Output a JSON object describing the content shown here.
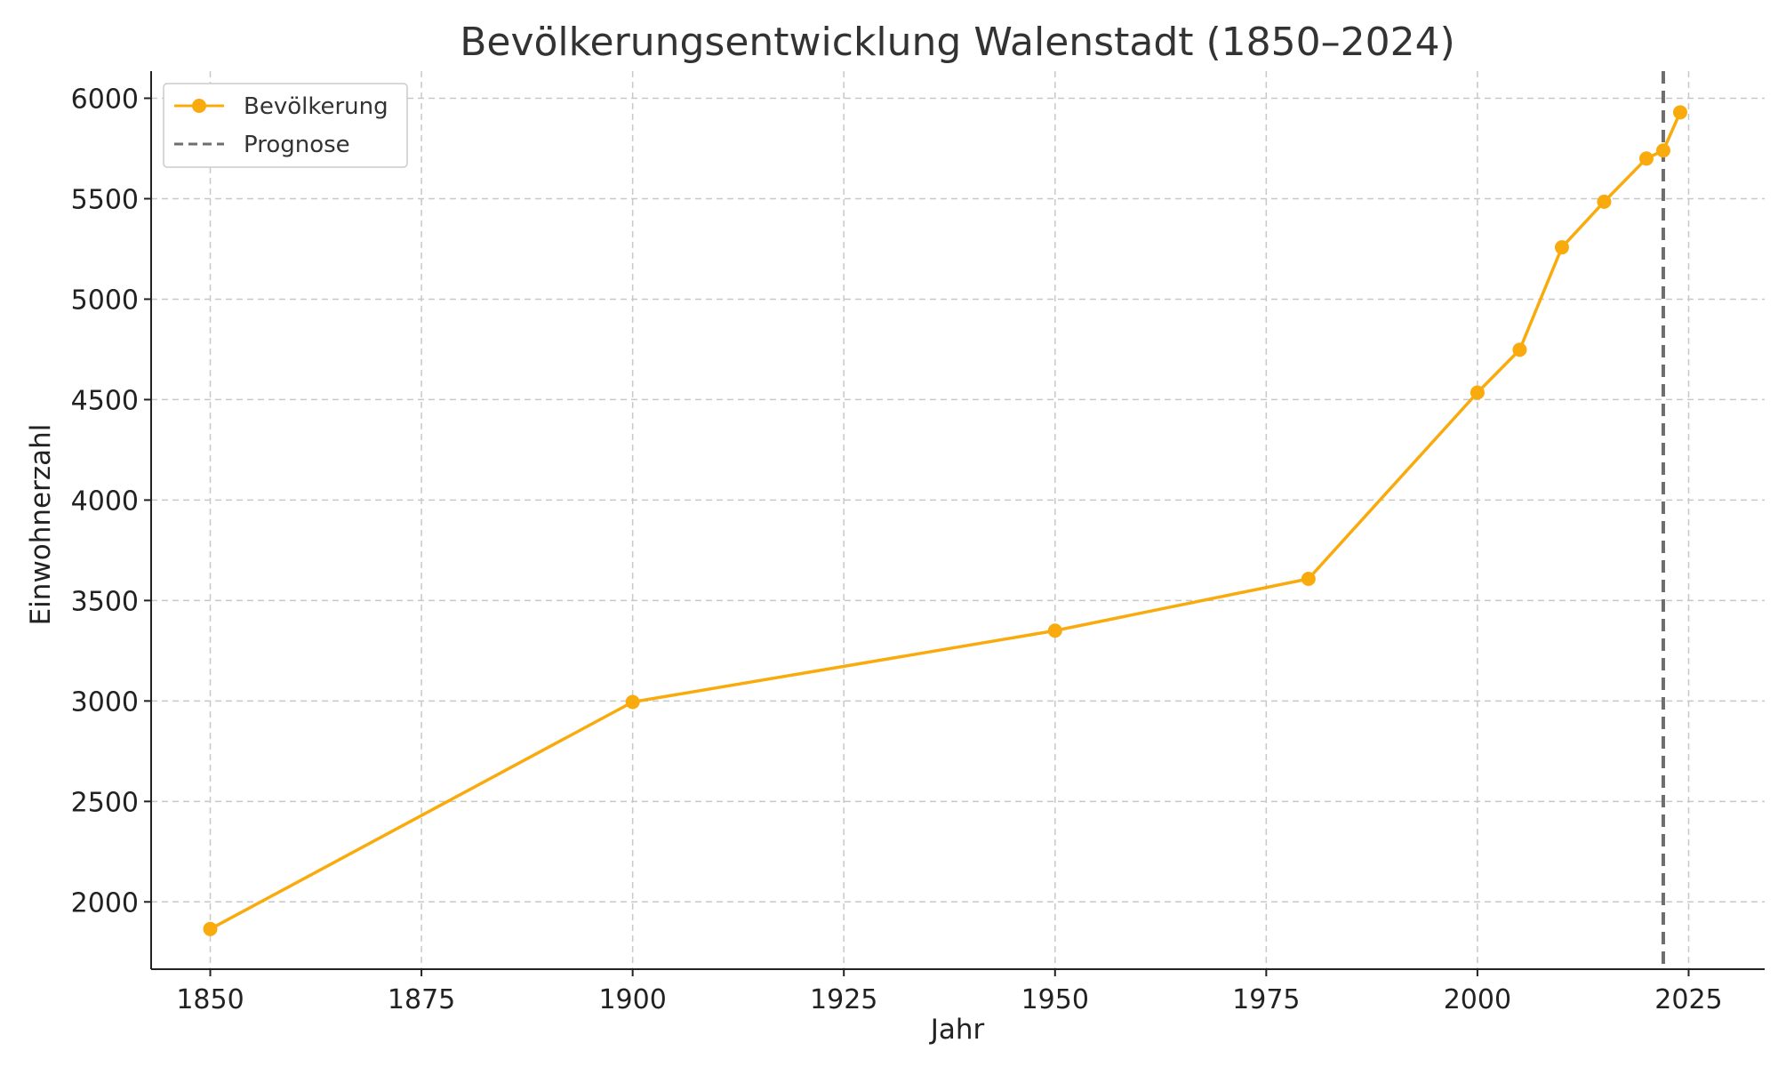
{
  "chart_data": {
    "type": "line",
    "title": "Bevölkerungsentwicklung Walenstadt (1850–2024)",
    "xlabel": "Jahr",
    "ylabel": "Einwohnerzahl",
    "xlim": [
      1843,
      2034
    ],
    "ylim": [
      1665,
      6135
    ],
    "x_ticks": [
      1850,
      1875,
      1900,
      1925,
      1950,
      1975,
      2000,
      2025
    ],
    "y_ticks": [
      2000,
      2500,
      3000,
      3500,
      4000,
      4500,
      5000,
      5500,
      6000
    ],
    "grid": true,
    "legend_position": "top-left",
    "series": [
      {
        "name": "Bevölkerung",
        "color": "#f9ab0e",
        "marker": "circle",
        "x": [
          1850,
          1900,
          1950,
          1980,
          2000,
          2005,
          2010,
          2015,
          2020,
          2022,
          2024
        ],
        "y": [
          1865,
          2995,
          3350,
          3608,
          4535,
          4748,
          5258,
          5485,
          5700,
          5740,
          5930
        ]
      }
    ],
    "vlines": [
      {
        "name": "Prognose",
        "x": 2022,
        "color": "#6e6e6e",
        "style": "dashed"
      }
    ]
  }
}
